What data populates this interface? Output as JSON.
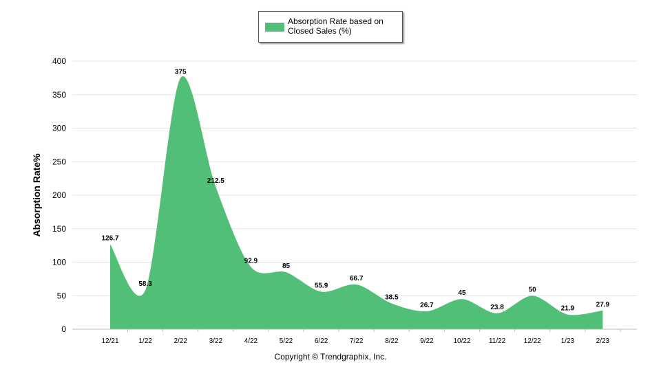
{
  "chart_data": {
    "type": "area",
    "title": "",
    "xlabel": "",
    "ylabel": "Absorption Rate%",
    "ylim": [
      0,
      400
    ],
    "yticks": [
      0,
      50,
      100,
      150,
      200,
      250,
      300,
      350,
      400
    ],
    "categories": [
      "12/21",
      "1/22",
      "2/22",
      "3/22",
      "4/22",
      "5/22",
      "6/22",
      "7/22",
      "8/22",
      "9/22",
      "10/22",
      "11/22",
      "12/22",
      "1/23",
      "2/23"
    ],
    "series": [
      {
        "name": "Absorption Rate based on Closed Sales (%)",
        "color": "#52bf78",
        "values": [
          126.7,
          58.3,
          375,
          212.5,
          92.9,
          85,
          55.9,
          66.7,
          38.5,
          26.7,
          45,
          23.8,
          50,
          21.9,
          27.9
        ],
        "labels": [
          "126.7",
          "58.3",
          "375",
          "212.5",
          "92.9",
          "85",
          "55.9",
          "66.7",
          "38.5",
          "26.7",
          "45",
          "23.8",
          "50",
          "21.9",
          "27.9"
        ]
      }
    ],
    "legend_position": "top-center",
    "grid": true
  },
  "legend": {
    "label": "Absorption Rate based on Closed Sales (%)"
  },
  "footer": {
    "copyright": "Copyright © Trendgraphix, Inc."
  }
}
